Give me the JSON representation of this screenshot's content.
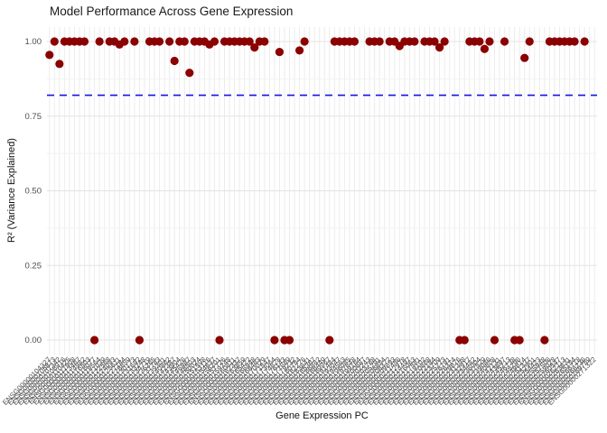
{
  "figure": {
    "title": "Model Performance Across Gene Expression",
    "x_axis_title": "Gene Expression PC",
    "y_axis_title": "R² (Variance Explained)"
  },
  "chart_data": {
    "type": "scatter",
    "title": "Model Performance Across Gene Expression",
    "xlabel": "Gene Expression PC",
    "ylabel": "R² (Variance Explained)",
    "ylim": [
      0,
      1
    ],
    "grid": true,
    "legend": "none",
    "point_color": "#8B0000",
    "grid_major_color": "#e3e3e3",
    "grid_minor_color": "#f2f2f2",
    "grid_vertical_color": "#ececec",
    "tick_label_color": "#4d4d4d",
    "threshold_line": {
      "value": 0.82,
      "color": "#1414E0",
      "style": "dashed"
    },
    "y_ticks": [
      {
        "label": "0.00",
        "value": 0.0
      },
      {
        "label": "0.25",
        "value": 0.25
      },
      {
        "label": "0.50",
        "value": 0.5
      },
      {
        "label": "0.75",
        "value": 0.75
      },
      {
        "label": "1.00",
        "value": 1.0
      }
    ],
    "y_minor_ticks": [
      0.125,
      0.375,
      0.625,
      0.875
    ],
    "categories": [
      "ENSG00000104327",
      "ENSG00000105873",
      "ENSG00000107342",
      "ENSG00000108916",
      "ENSG00000110425",
      "ENSG00000111908",
      "ENSG00000113467",
      "ENSG00000114982",
      "ENSG00000116503",
      "ENSG00000118077",
      "ENSG00000119564",
      "ENSG00000121039",
      "ENSG00000122568",
      "ENSG00000124093",
      "ENSG00000125611",
      "ENSG00000127184",
      "ENSG00000128659",
      "ENSG00000130173",
      "ENSG00000131692",
      "ENSG00000133248",
      "ENSG00000134719",
      "ENSG00000136265",
      "ENSG00000137783",
      "ENSG00000139301",
      "ENSG00000140862",
      "ENSG00000142387",
      "ENSG00000143904",
      "ENSG00000145426",
      "ENSG00000146987",
      "ENSG00000148503",
      "ENSG00000150024",
      "ENSG00000151598",
      "ENSG00000153116",
      "ENSG00000154637",
      "ENSG00000156201",
      "ENSG00000157726",
      "ENSG00000159248",
      "ENSG00000160811",
      "ENSG00000162337",
      "ENSG00000163859",
      "ENSG00000165422",
      "ENSG00000166948",
      "ENSG00000168463",
      "ENSG00000170029",
      "ENSG00000171547",
      "ENSG00000173064",
      "ENSG00000174628",
      "ENSG00000176143",
      "ENSG00000177669",
      "ENSG00000179232",
      "ENSG00000180754",
      "ENSG00000182276",
      "ENSG00000183841",
      "ENSG00000185367",
      "ENSG00000186882",
      "ENSG00000188449",
      "ENSG00000189967",
      "ENSG00000191484",
      "ENSG00000193047",
      "ENSG00000194563",
      "ENSG00000196085",
      "ENSG00000197648",
      "ENSG00000199164",
      "ENSG00000200687",
      "ENSG00000202243",
      "ENSG00000203768",
      "ENSG00000205291",
      "ENSG00000206854",
      "ENSG00000208372",
      "ENSG00000209893",
      "ENSG00000211456",
      "ENSG00000212978",
      "ENSG00000214497",
      "ENSG00000216063",
      "ENSG00000217581",
      "ENSG00000219102",
      "ENSG00000220668",
      "ENSG00000222184",
      "ENSG00000223709",
      "ENSG00000225273",
      "ENSG00000226791",
      "ENSG00000228314",
      "ENSG00000229876",
      "ENSG00000231398",
      "ENSG00000232917",
      "ENSG00000234482",
      "ENSG00000236004",
      "ENSG00000237529",
      "ENSG00000239086",
      "ENSG00000240608",
      "ENSG00000242131",
      "ENSG00000243697",
      "ENSG00000245213",
      "ENSG00000246738",
      "ENSG00000248296",
      "ENSG00000249814",
      "ENSG00000251337",
      "ENSG00000252901",
      "ENSG00000254423",
      "ENSG00000255948",
      "ENSG00000257506",
      "ENSG00000259028",
      "ENSG00000260547",
      "ENSG00000262113",
      "ENSG00000263631",
      "ENSG00000265154",
      "ENSG00000266718",
      "ENSG00000268236",
      "ENSG00000269759",
      "ENSG00000271322"
    ],
    "values": [
      0.955,
      1,
      0.925,
      1,
      1,
      1,
      1,
      1,
      null,
      0,
      1,
      null,
      1,
      1,
      0.99,
      1,
      null,
      1,
      0,
      null,
      1,
      1,
      1,
      null,
      1,
      0.935,
      1,
      1,
      0.895,
      1,
      1,
      1,
      0.99,
      1,
      0,
      1,
      1,
      1,
      1,
      1,
      1,
      0.98,
      1,
      1,
      null,
      0,
      0.965,
      0,
      0,
      null,
      0.97,
      1,
      null,
      null,
      null,
      null,
      0,
      1,
      1,
      1,
      1,
      1,
      null,
      null,
      1,
      1,
      1,
      null,
      1,
      1,
      0.985,
      1,
      1,
      1,
      null,
      1,
      1,
      1,
      0.98,
      1,
      null,
      null,
      0,
      0,
      1,
      1,
      1,
      0.975,
      1,
      0,
      null,
      1,
      null,
      0,
      0,
      0.945,
      1,
      null,
      null,
      0,
      1,
      1,
      1,
      1,
      1,
      1,
      null,
      1,
      null,
      null
    ]
  }
}
